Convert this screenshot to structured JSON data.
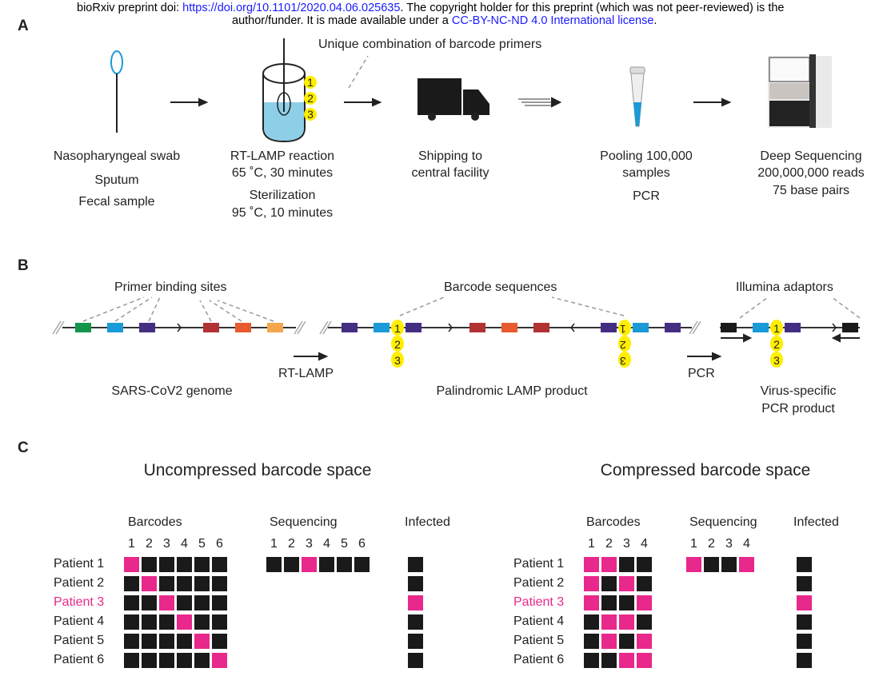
{
  "watermark": {
    "prefix": "bioRxiv preprint doi: ",
    "doi": "https://doi.org/10.1101/2020.04.06.025635",
    "mid": ". The copyright holder for this preprint (which was not peer-reviewed) is the",
    "line2_prefix": "author/funder. It is made available under a ",
    "license": "CC-BY-NC-ND 4.0 International license",
    "line2_suffix": "."
  },
  "panel_a": {
    "label": "A",
    "callout": "Unique combination of barcode primers",
    "barcodes": [
      "1",
      "2",
      "3"
    ],
    "steps": [
      {
        "lines": [
          "Nasopharyngeal swab",
          "Sputum",
          "Fecal sample"
        ]
      },
      {
        "lines": [
          "RT-LAMP reaction",
          "65 ˚C, 30 minutes",
          "Sterilization",
          "95 ˚C, 10 minutes"
        ]
      },
      {
        "lines": [
          "Shipping to",
          "central facility"
        ]
      },
      {
        "lines": [
          "Pooling 100,000",
          "samples",
          "PCR"
        ]
      },
      {
        "lines": [
          "Deep Sequencing",
          "200,000,000 reads",
          "75 base pairs"
        ]
      }
    ]
  },
  "panel_b": {
    "label": "B",
    "primer_sites": "Primer binding sites",
    "barcode_sequences": "Barcode sequences",
    "illumina": "Illumina adaptors",
    "rt_lamp": "RT-LAMP",
    "pcr": "PCR",
    "genome": "SARS-CoV2 genome",
    "lamp_product": "Palindromic LAMP product",
    "pcr_product": [
      "Virus-specific",
      "PCR product"
    ],
    "barcodes": [
      "1",
      "2",
      "3"
    ]
  },
  "panel_c": {
    "label": "C",
    "uncompressed": {
      "title": "Uncompressed barcode space",
      "barcodes_label": "Barcodes",
      "sequencing_label": "Sequencing",
      "infected_label": "Infected",
      "columns": [
        "1",
        "2",
        "3",
        "4",
        "5",
        "6"
      ],
      "patients": [
        {
          "name": "Patient 1",
          "bits": [
            1,
            0,
            0,
            0,
            0,
            0
          ],
          "infected": false
        },
        {
          "name": "Patient 2",
          "bits": [
            0,
            1,
            0,
            0,
            0,
            0
          ],
          "infected": false
        },
        {
          "name": "Patient 3",
          "bits": [
            0,
            0,
            1,
            0,
            0,
            0
          ],
          "infected": true
        },
        {
          "name": "Patient 4",
          "bits": [
            0,
            0,
            0,
            1,
            0,
            0
          ],
          "infected": false
        },
        {
          "name": "Patient 5",
          "bits": [
            0,
            0,
            0,
            0,
            1,
            0
          ],
          "infected": false
        },
        {
          "name": "Patient 6",
          "bits": [
            0,
            0,
            0,
            0,
            0,
            1
          ],
          "infected": false
        }
      ],
      "sequencing": [
        0,
        0,
        1,
        0,
        0,
        0
      ]
    },
    "compressed": {
      "title": "Compressed barcode space",
      "barcodes_label": "Barcodes",
      "sequencing_label": "Sequencing",
      "infected_label": "Infected",
      "columns": [
        "1",
        "2",
        "3",
        "4"
      ],
      "patients": [
        {
          "name": "Patient 1",
          "bits": [
            1,
            1,
            0,
            0
          ],
          "infected": false
        },
        {
          "name": "Patient 2",
          "bits": [
            1,
            0,
            1,
            0
          ],
          "infected": false
        },
        {
          "name": "Patient 3",
          "bits": [
            1,
            0,
            0,
            1
          ],
          "infected": true
        },
        {
          "name": "Patient 4",
          "bits": [
            0,
            1,
            1,
            0
          ],
          "infected": false
        },
        {
          "name": "Patient 5",
          "bits": [
            0,
            1,
            0,
            1
          ],
          "infected": false
        },
        {
          "name": "Patient 6",
          "bits": [
            0,
            0,
            1,
            1
          ],
          "infected": false
        }
      ],
      "sequencing": [
        1,
        0,
        0,
        1
      ]
    }
  },
  "colors": {
    "positive": "#e8288a",
    "negative": "#1a1a1a",
    "barcode": "#ffee00",
    "link": "#1a1aff"
  }
}
